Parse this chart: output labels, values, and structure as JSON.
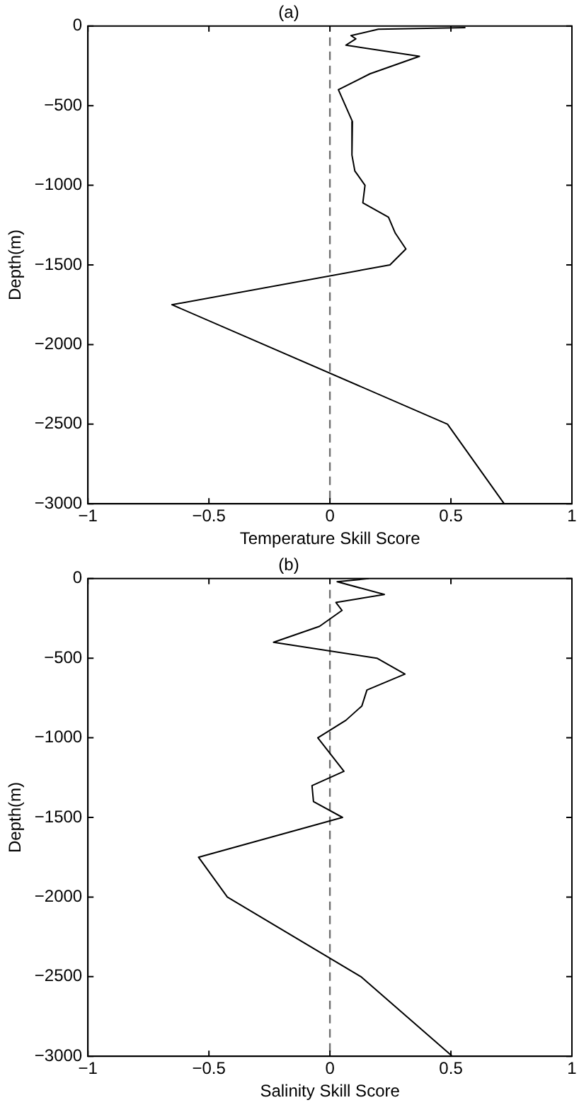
{
  "chart_data": [
    {
      "type": "line",
      "title": "(a)",
      "xlabel": "Temperature Skill Score",
      "ylabel": "Depth(m)",
      "x": [
        0.56,
        0.2,
        0.087,
        0.107,
        0.066,
        0.37,
        0.165,
        0.035,
        0.093,
        0.091,
        0.103,
        0.145,
        0.136,
        0.242,
        0.27,
        0.314,
        0.248,
        -0.653,
        0.486,
        0.72
      ],
      "series": [
        {
          "color": "#000000",
          "values": [
            -10,
            -20,
            -60,
            -80,
            -120,
            -190,
            -300,
            -400,
            -600,
            -810,
            -910,
            -1000,
            -1110,
            -1200,
            -1300,
            -1400,
            -1500,
            -1750,
            -2500,
            -3000
          ]
        }
      ],
      "xlim": [
        -1,
        1
      ],
      "xticks": [
        -1,
        -0.5,
        0,
        0.5,
        1
      ],
      "ylim": [
        -3000,
        0
      ],
      "yticks": [
        -3000,
        -2500,
        -2000,
        -1500,
        -1000,
        -500,
        0
      ],
      "ref_lines": [
        {
          "axis": "x",
          "value": 0,
          "color": "#707070",
          "line_style": "dashed"
        }
      ],
      "grid": false,
      "legend": false,
      "marker": "none",
      "line_style": "solid"
    },
    {
      "type": "line",
      "title": "(b)",
      "xlabel": "Salinity Skill Score",
      "ylabel": "Depth(m)",
      "x": [
        0.16,
        0.03,
        0.225,
        0.025,
        0.05,
        -0.043,
        -0.233,
        0.194,
        0.31,
        0.153,
        0.132,
        0.066,
        -0.05,
        0.058,
        -0.074,
        -0.068,
        0.052,
        -0.543,
        -0.424,
        0.128,
        0.506
      ],
      "series": [
        {
          "color": "#000000",
          "values": [
            0,
            -20,
            -100,
            -150,
            -200,
            -300,
            -400,
            -500,
            -600,
            -700,
            -800,
            -890,
            -1000,
            -1210,
            -1300,
            -1400,
            -1500,
            -1750,
            -2000,
            -2500,
            -3000
          ]
        }
      ],
      "xlim": [
        -1,
        1
      ],
      "xticks": [
        -1,
        -0.5,
        0,
        0.5,
        1
      ],
      "ylim": [
        -3000,
        0
      ],
      "yticks": [
        -3000,
        -2500,
        -2000,
        -1500,
        -1000,
        -500,
        0
      ],
      "ref_lines": [
        {
          "axis": "x",
          "value": 0,
          "color": "#707070",
          "line_style": "dashed"
        }
      ],
      "grid": false,
      "legend": false,
      "marker": "none",
      "line_style": "solid"
    }
  ]
}
